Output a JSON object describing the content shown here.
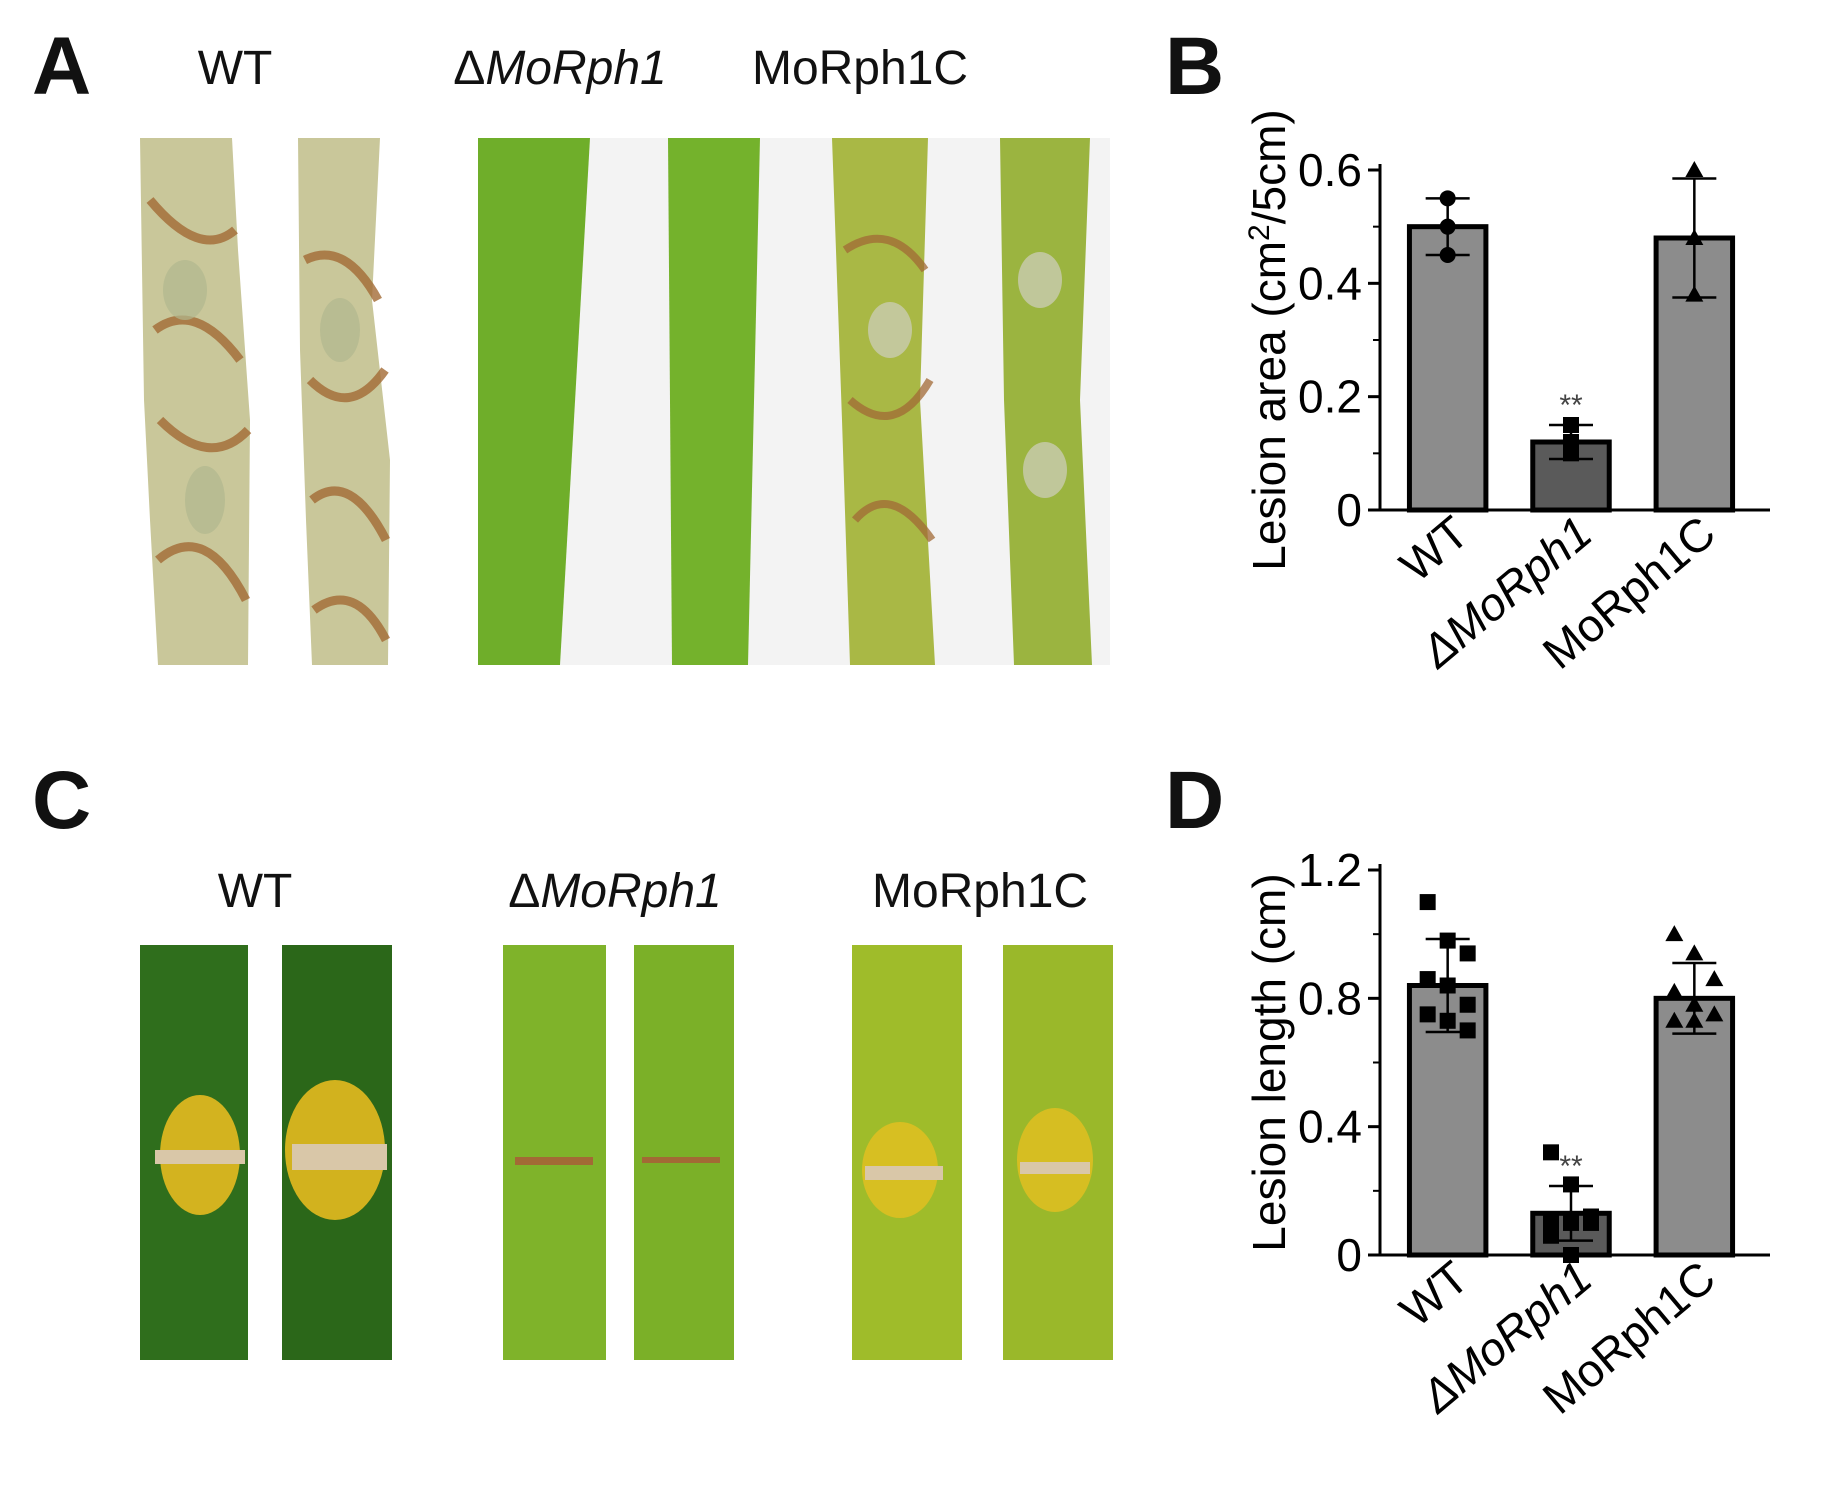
{
  "panels": {
    "a": {
      "letter": "A",
      "labels": [
        {
          "prefix": "",
          "name": "WT",
          "italic": false
        },
        {
          "prefix": "Δ",
          "name": "MoRph1",
          "italic": true
        },
        {
          "prefix": "",
          "name": "MoRph1C",
          "italic": false
        }
      ]
    },
    "b": {
      "letter": "B"
    },
    "c": {
      "letter": "C",
      "labels": [
        {
          "prefix": "",
          "name": "WT",
          "italic": false
        },
        {
          "prefix": "Δ",
          "name": "MoRph1",
          "italic": true
        },
        {
          "prefix": "",
          "name": "MoRph1C",
          "italic": false
        }
      ]
    },
    "d": {
      "letter": "D"
    }
  },
  "photo_colors": {
    "wt_spray_leaf": "#c9c79a",
    "wt_spray_lesion": "#a26a35",
    "mutant_spray_leaf": "#6fae2a",
    "complement_spray_leaf": "#a9b845",
    "punch_leaf_dark": "#2f6e1c",
    "punch_leaf_light": "#7fb32a",
    "punch_leaf_yellow": "#9fbc2a",
    "halo": "#f0c020",
    "wound": "#d9c7a8"
  },
  "chart_data": [
    {
      "type": "bar",
      "categories": [
        "WT",
        "ΔMoRph1",
        "MoRph1C"
      ],
      "categories_italic": [
        false,
        true,
        false
      ],
      "values": [
        0.5,
        0.12,
        0.48
      ],
      "errors": [
        0.05,
        0.03,
        0.105
      ],
      "bar_colors": [
        "#8c8c8c",
        "#5a5a5a",
        "#8c8c8c"
      ],
      "markers": [
        "circle",
        "square",
        "triangle"
      ],
      "points": [
        [
          0.55,
          0.5,
          0.45
        ],
        [
          0.15,
          0.12,
          0.1
        ],
        [
          0.6,
          0.48,
          0.38
        ]
      ],
      "significance": [
        "",
        "**",
        ""
      ],
      "ylabel_prefix": "Lesion area (cm",
      "ylabel_sup": "2",
      "ylabel_suffix": "/5cm)",
      "ylim": [
        0,
        0.6
      ],
      "yticks": [
        0,
        0.2,
        0.4,
        0.6
      ],
      "ytick_labels": [
        "0",
        "0.2",
        "0.4",
        "0.6"
      ],
      "grid": false
    },
    {
      "type": "bar",
      "categories": [
        "WT",
        "ΔMoRph1",
        "MoRph1C"
      ],
      "categories_italic": [
        false,
        true,
        false
      ],
      "values": [
        0.84,
        0.13,
        0.8
      ],
      "errors": [
        0.145,
        0.085,
        0.11
      ],
      "bar_colors": [
        "#8c8c8c",
        "#5a5a5a",
        "#8c8c8c"
      ],
      "markers": [
        "square",
        "square",
        "triangle"
      ],
      "points": [
        [
          1.1,
          0.98,
          0.94,
          0.86,
          0.84,
          0.78,
          0.75,
          0.73,
          0.7
        ],
        [
          0.32,
          0.22,
          0.12,
          0.1,
          0.1,
          0.1,
          0.06,
          0.0
        ],
        [
          1.0,
          0.94,
          0.86,
          0.82,
          0.78,
          0.75,
          0.73,
          0.73
        ]
      ],
      "significance": [
        "",
        "**",
        ""
      ],
      "ylabel_prefix": "Lesion length (cm)",
      "ylabel_sup": "",
      "ylabel_suffix": "",
      "ylim": [
        0,
        1.2
      ],
      "yticks": [
        0,
        0.4,
        0.8,
        1.2
      ],
      "ytick_labels": [
        "0",
        "0.4",
        "0.8",
        "1.2"
      ],
      "grid": false
    }
  ]
}
